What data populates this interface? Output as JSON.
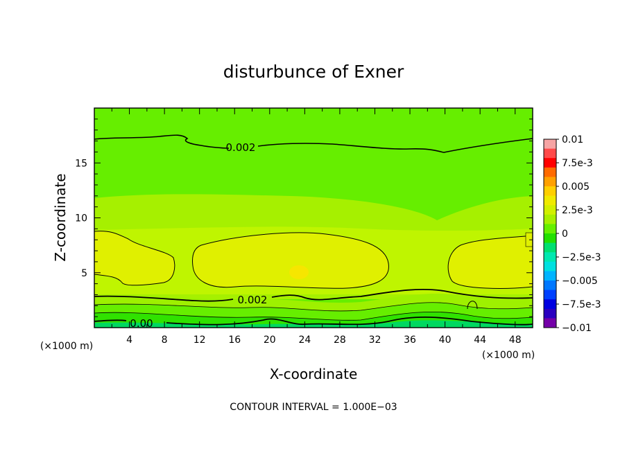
{
  "chart_data": {
    "type": "contour",
    "title": "disturbunce of Exner",
    "xlabel": "X-coordinate",
    "ylabel": "Z-coordinate",
    "x_unit_left": "(×1000 m)",
    "x_unit_right": "(×1000 m)",
    "xlim": [
      0,
      50
    ],
    "ylim": [
      0,
      20
    ],
    "x_ticks": [
      4,
      8,
      12,
      16,
      20,
      24,
      28,
      32,
      36,
      40,
      44,
      48
    ],
    "y_ticks": [
      5,
      10,
      15
    ],
    "colorbar": {
      "range": [
        -0.01,
        0.01
      ],
      "labels": [
        "0.01",
        "7.5e-3",
        "0.005",
        "2.5e-3",
        "0",
        "−2.5e-3",
        "−0.005",
        "−7.5e-3",
        "−0.01"
      ],
      "colors": [
        "#f6a4a4",
        "#ff4a4a",
        "#ff0000",
        "#ff6a00",
        "#ffa000",
        "#ffcf00",
        "#f0ea00",
        "#d2f000",
        "#a8f000",
        "#66f000",
        "#22e000",
        "#00e070",
        "#00e8b0",
        "#00e0e0",
        "#00b4ff",
        "#0078ff",
        "#0040ff",
        "#0000e0",
        "#2a00c0",
        "#7400a8"
      ]
    },
    "contour_labels": [
      {
        "text": "0.002",
        "level": 0.002
      },
      {
        "text": "0.002",
        "level": 0.002
      },
      {
        "text": "0.00",
        "level": 0.0
      }
    ],
    "contour_interval_note": "CONTOUR INTERVAL = 1.000E−03",
    "features": [
      {
        "description_value": "yellow-green maxima",
        "centers_x": [
          5,
          22,
          44
        ],
        "center_z": 5.5,
        "approx_value": 0.0035
      },
      {
        "description_value": "minimum band near ground",
        "z_range": [
          0,
          3
        ],
        "approx_value": 0.0
      }
    ]
  }
}
